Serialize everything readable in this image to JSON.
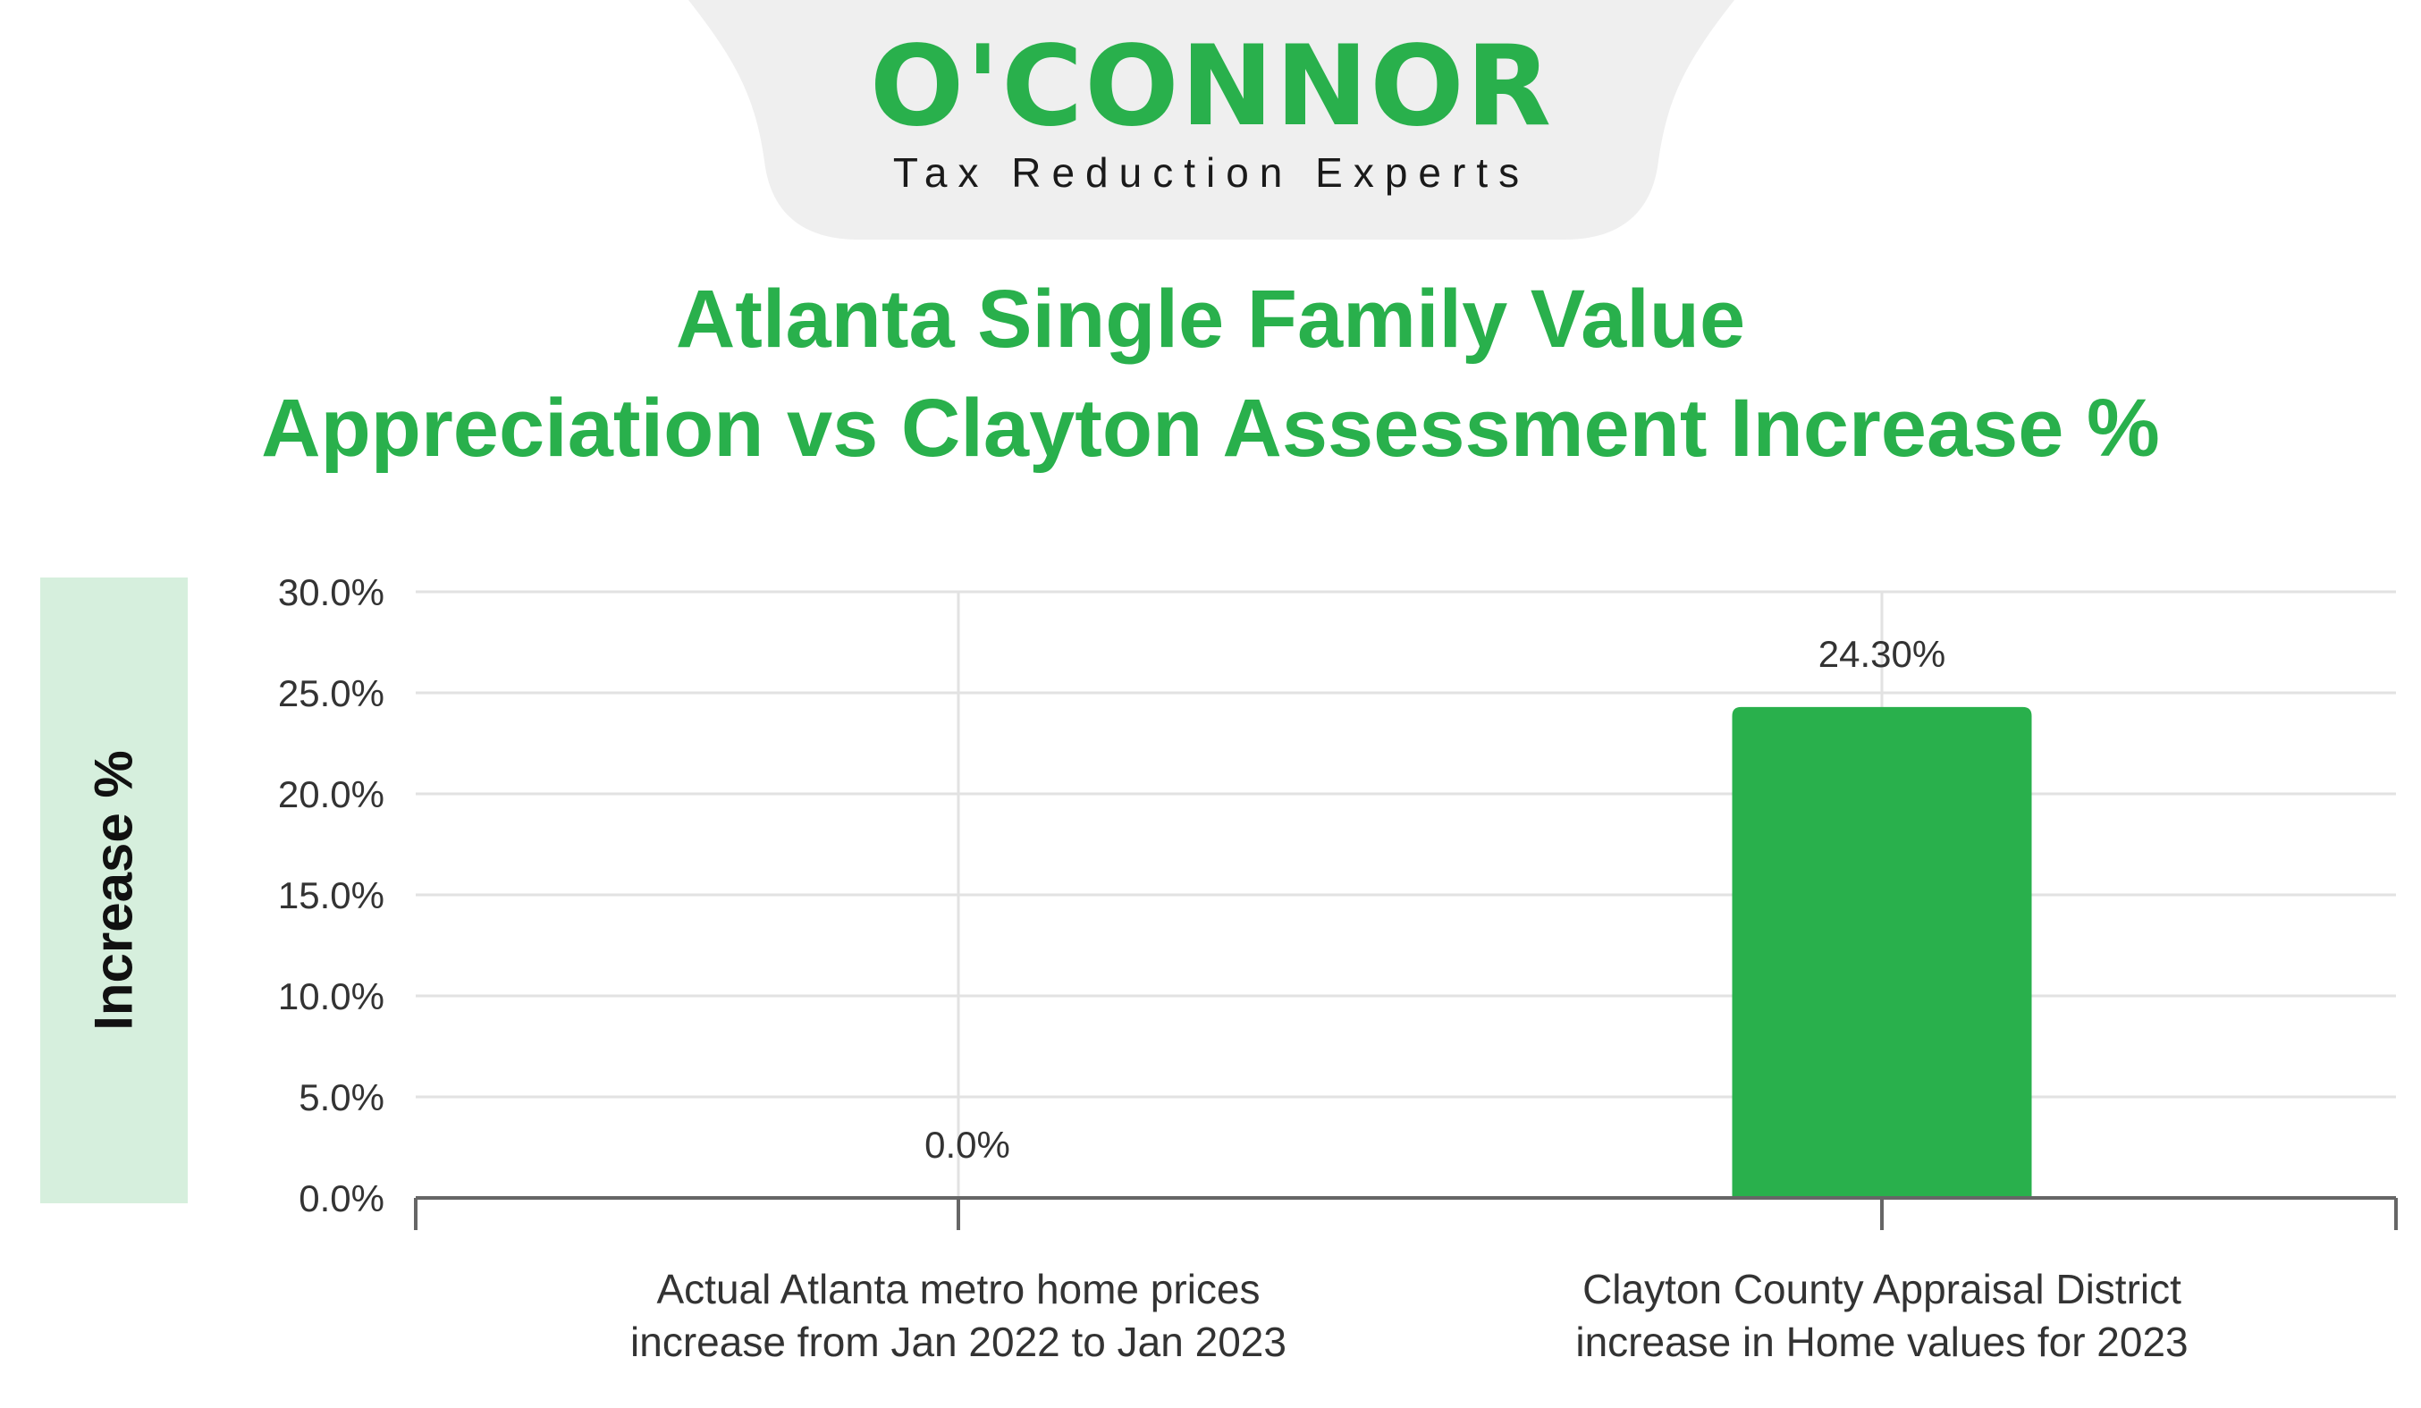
{
  "brand": {
    "logo_text": "O'CONNOR",
    "tagline": "Tax Reduction Experts",
    "green": "#29b04c"
  },
  "title": {
    "line1": "Atlanta Single Family Value",
    "line2": "Appreciation vs Clayton Assessment Increase %"
  },
  "chart_data": {
    "type": "bar",
    "title": "Atlanta Single Family Value Appreciation vs Clayton Assessment Increase %",
    "ylabel": "Increase %",
    "xlabel": "",
    "ylim": [
      0,
      30
    ],
    "yticks": [
      "0.0%",
      "5.0%",
      "10.0%",
      "15.0%",
      "20.0%",
      "25.0%",
      "30.0%"
    ],
    "categories": [
      [
        "Actual Atlanta metro home prices",
        "increase from Jan 2022 to Jan 2023"
      ],
      [
        "Clayton County Appraisal District",
        "increase in Home values for 2023"
      ]
    ],
    "values": [
      0.0,
      24.3
    ],
    "data_labels": [
      "0.0%",
      "24.30%"
    ],
    "bar_color": "#29b04c",
    "grid": true,
    "legend": "none"
  }
}
